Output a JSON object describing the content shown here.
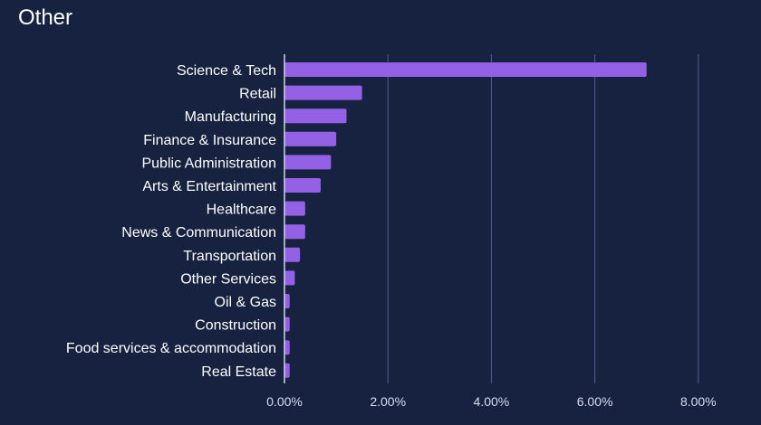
{
  "chart_data": {
    "type": "bar",
    "orientation": "horizontal",
    "title": "Other",
    "categories": [
      "Science & Tech",
      "Retail",
      "Manufacturing",
      "Finance & Insurance",
      "Public Administration",
      "Arts & Entertainment",
      "Healthcare",
      "News & Communication",
      "Transportation",
      "Other Services",
      "Oil & Gas",
      "Construction",
      "Food services & accommodation",
      "Real Estate"
    ],
    "values": [
      7.0,
      1.5,
      1.2,
      1.0,
      0.9,
      0.7,
      0.4,
      0.4,
      0.3,
      0.2,
      0.1,
      0.1,
      0.1,
      0.1
    ],
    "xlim": [
      0,
      8.5
    ],
    "xticks": [
      0,
      2,
      4,
      6,
      8
    ],
    "xtick_labels": [
      "0.00%",
      "2.00%",
      "4.00%",
      "6.00%",
      "8.00%"
    ],
    "grid": "vertical",
    "colors": {
      "background": "#172240",
      "bar": "#9461e6",
      "grid": "#4a5f96",
      "axis": "#cfd6ea"
    }
  }
}
